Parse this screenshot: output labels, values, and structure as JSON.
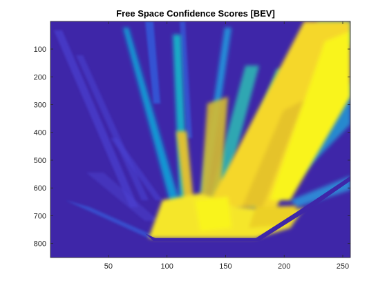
{
  "chart_data": {
    "type": "heatmap",
    "title": "Free Space Confidence Scores [BEV]",
    "xlabel": "",
    "ylabel": "",
    "xlim": [
      0.5,
      256.5
    ],
    "ylim": [
      0.5,
      850.5
    ],
    "y_reversed": true,
    "x_ticks": [
      "50",
      "100",
      "150",
      "200",
      "250"
    ],
    "y_ticks": [
      "100",
      "200",
      "300",
      "400",
      "500",
      "600",
      "700",
      "800"
    ],
    "colormap": "parula",
    "colormap_low": "#3e26a8",
    "colormap_high": "#f9fb15",
    "value_range": [
      0,
      1
    ]
  },
  "page": {
    "background": "#ffffff",
    "axes_color": "#262626"
  }
}
